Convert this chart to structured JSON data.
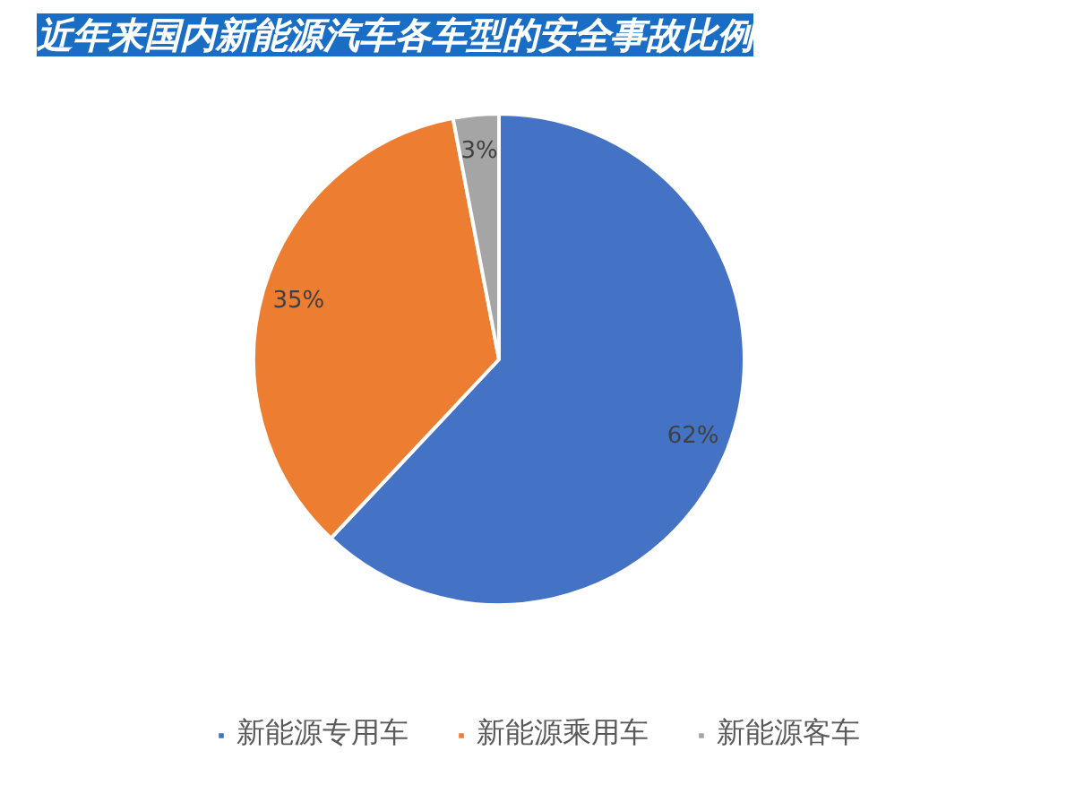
{
  "chart_data": {
    "type": "pie",
    "title": "近年来国内新能源汽车各车型的安全事故比例",
    "categories": [
      "新能源专用车",
      "新能源乘用车",
      "新能源客车"
    ],
    "values": [
      62,
      35,
      3
    ],
    "colors": [
      "#4472c4",
      "#ed7d31",
      "#a5a5a5"
    ],
    "value_labels": [
      "62%",
      "35%",
      "3%"
    ],
    "legend": "bottom"
  }
}
